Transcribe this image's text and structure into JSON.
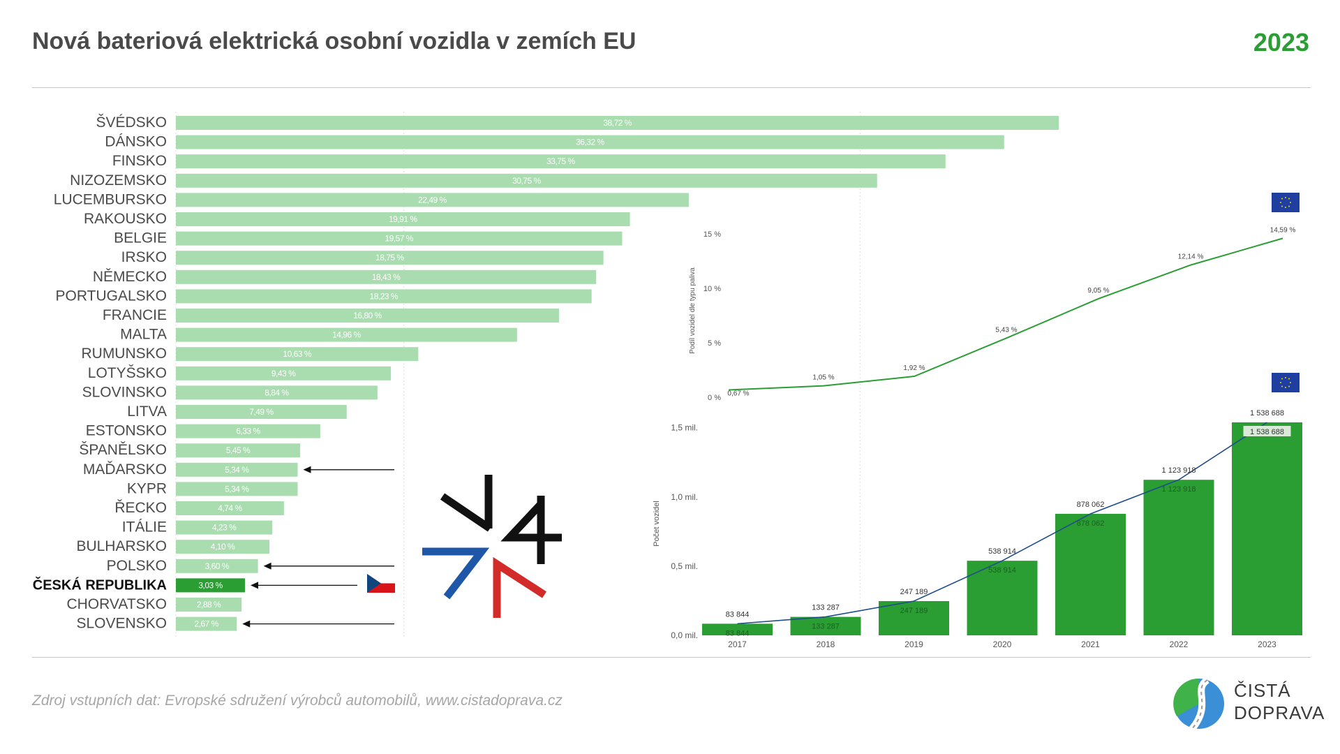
{
  "header": {
    "title": "Nová bateriová elektrická osobní vozidla v zemích EU",
    "year": "2023"
  },
  "footer": {
    "source": "Zdroj vstupních dat: Evropské sdružení výrobců automobilů, www.cistadoprava.cz"
  },
  "logo": {
    "line1": "ČISTÁ",
    "line2": "DOPRAVA"
  },
  "colors": {
    "bar_light": "#a9dcaf",
    "bar_highlight": "#2a9d33",
    "line_green": "#2a9d33",
    "line_blue": "#1f4e8c",
    "title": "#4a4a4a"
  },
  "chart_data": [
    {
      "type": "bar",
      "orientation": "horizontal",
      "categories": [
        "ŠVÉDSKO",
        "DÁNSKO",
        "FINSKO",
        "NIZOZEMSKO",
        "LUCEMBURSKO",
        "RAKOUSKO",
        "BELGIE",
        "IRSKO",
        "NĚMECKO",
        "PORTUGALSKO",
        "FRANCIE",
        "MALTA",
        "RUMUNSKO",
        "LOTYŠSKO",
        "SLOVINSKO",
        "LITVA",
        "ESTONSKO",
        "ŠPANĚLSKO",
        "MAĎARSKO",
        "KYPR",
        "ŘECKO",
        "ITÁLIE",
        "BULHARSKO",
        "POLSKO",
        "ČESKÁ REPUBLIKA",
        "CHORVATSKO",
        "SLOVENSKO"
      ],
      "values": [
        38.72,
        36.32,
        33.75,
        30.75,
        22.49,
        19.91,
        19.57,
        18.75,
        18.43,
        18.23,
        16.8,
        14.96,
        10.63,
        9.43,
        8.84,
        7.49,
        6.33,
        5.45,
        5.34,
        5.34,
        4.74,
        4.23,
        4.1,
        3.6,
        3.03,
        2.88,
        2.67
      ],
      "labels": [
        "38,72 %",
        "36,32 %",
        "33,75 %",
        "30,75 %",
        "22,49 %",
        "19,91 %",
        "19,57 %",
        "18,75 %",
        "18,43 %",
        "18,23 %",
        "16,80 %",
        "14,96 %",
        "10,63 %",
        "9,43 %",
        "8,84 %",
        "7,49 %",
        "6,33 %",
        "5,45 %",
        "5,34 %",
        "5,34 %",
        "4,74 %",
        "4,23 %",
        "4,10 %",
        "3,60 %",
        "3,03 %",
        "2,88 %",
        "2,67 %"
      ],
      "highlight": "ČESKÁ REPUBLIKA",
      "arrows_to": [
        "MAĎARSKO",
        "POLSKO",
        "ČESKÁ REPUBLIKA",
        "SLOVENSKO"
      ],
      "xlim": [
        0,
        40
      ]
    },
    {
      "type": "line",
      "x": [
        "2017",
        "2018",
        "2019",
        "2020",
        "2021",
        "2022",
        "2023"
      ],
      "values": [
        0.67,
        1.05,
        1.92,
        5.43,
        9.05,
        12.14,
        14.59
      ],
      "labels": [
        "0,67 %",
        "1,05 %",
        "1,92 %",
        "5,43 %",
        "9,05 %",
        "12,14 %",
        "14,59 %"
      ],
      "ylabel": "Podíl vozidel dle typu paliva",
      "yticks": [
        "0 %",
        "5 %",
        "10 %",
        "15 %"
      ],
      "ylim": [
        0,
        15
      ]
    },
    {
      "type": "bar",
      "x": [
        "2017",
        "2018",
        "2019",
        "2020",
        "2021",
        "2022",
        "2023"
      ],
      "values": [
        83844,
        133287,
        247189,
        538914,
        878062,
        1123918,
        1538688
      ],
      "labels": [
        "83 844",
        "133 287",
        "247 189",
        "538 914",
        "878 062",
        "1 123 918",
        "1 538 688"
      ],
      "ylabel": "Počet vozidel",
      "yticks": [
        "0,0 mil.",
        "0,5 mil.",
        "1,0 mil.",
        "1,5 mil."
      ],
      "ylim": [
        0,
        1538688
      ]
    }
  ]
}
